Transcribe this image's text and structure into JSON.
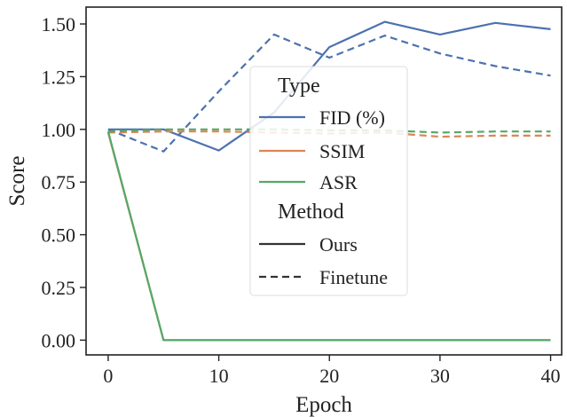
{
  "chart_data": {
    "type": "line",
    "xlabel": "Epoch",
    "ylabel": "Score",
    "xlim": [
      -2,
      41
    ],
    "ylim": [
      -0.07,
      1.58
    ],
    "xticks": [
      0,
      10,
      20,
      30,
      40
    ],
    "yticks": [
      0,
      0.25,
      0.5,
      0.75,
      1.0,
      1.25,
      1.5
    ],
    "ytick_labels": [
      "0.00",
      "0.25",
      "0.50",
      "0.75",
      "1.00",
      "1.25",
      "1.50"
    ],
    "x": [
      0,
      5,
      10,
      15,
      20,
      25,
      30,
      35,
      40
    ],
    "series": [
      {
        "name": "FID (%)",
        "type": "FID (%)",
        "method": "Ours",
        "color": "#4c72b0",
        "dash": "solid",
        "values": [
          1.0,
          1.0,
          0.9,
          1.08,
          1.39,
          1.51,
          1.45,
          1.505,
          1.475
        ]
      },
      {
        "name": "FID (%)",
        "type": "FID (%)",
        "method": "Finetune",
        "color": "#4c72b0",
        "dash": "dashed",
        "values": [
          1.0,
          0.895,
          1.18,
          1.45,
          1.34,
          1.445,
          1.36,
          1.3,
          1.255
        ]
      },
      {
        "name": "SSIM",
        "type": "SSIM",
        "method": "Ours",
        "color": "#dd8452",
        "dash": "solid",
        "values": [
          0.985,
          0.0,
          0.0,
          0.0,
          0.0,
          0.0,
          0.0,
          0.0,
          0.0
        ]
      },
      {
        "name": "SSIM",
        "type": "SSIM",
        "method": "Finetune",
        "color": "#dd8452",
        "dash": "dashed",
        "values": [
          0.985,
          0.99,
          0.99,
          0.985,
          0.98,
          0.985,
          0.965,
          0.97,
          0.97
        ]
      },
      {
        "name": "ASR",
        "type": "ASR",
        "method": "Ours",
        "color": "#55a868",
        "dash": "solid",
        "values": [
          0.99,
          0.0,
          0.0,
          0.0,
          0.0,
          0.0,
          0.0,
          0.0,
          0.0
        ]
      },
      {
        "name": "ASR",
        "type": "ASR",
        "method": "Finetune",
        "color": "#55a868",
        "dash": "dashed",
        "values": [
          0.99,
          1.0,
          1.0,
          1.0,
          0.995,
          0.995,
          0.985,
          0.99,
          0.99
        ]
      }
    ],
    "grid": false,
    "legend": {
      "placement": "center",
      "type_heading": "Type",
      "type_entries": [
        {
          "label": "FID (%)",
          "color": "#4c72b0"
        },
        {
          "label": "SSIM",
          "color": "#dd8452"
        },
        {
          "label": "ASR",
          "color": "#55a868"
        }
      ],
      "method_heading": "Method",
      "method_entries": [
        {
          "label": "Ours",
          "dash": "solid",
          "color": "#333333"
        },
        {
          "label": "Finetune",
          "dash": "dashed",
          "color": "#333333"
        }
      ]
    }
  }
}
